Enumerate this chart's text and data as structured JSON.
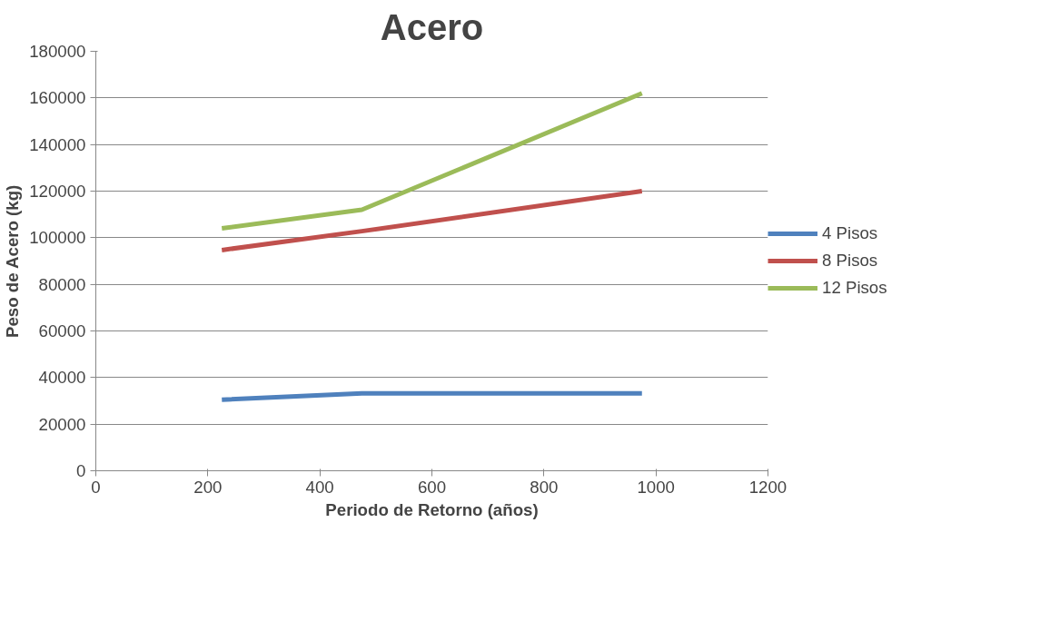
{
  "chart_data": {
    "type": "line",
    "title": "Acero",
    "xlabel": "Periodo de Retorno (años)",
    "ylabel": "Peso de Acero (kg)",
    "x": [
      225,
      475,
      975
    ],
    "series": [
      {
        "name": "4 Pisos",
        "color": "#4f81bd",
        "values": [
          30500,
          33200,
          33200
        ]
      },
      {
        "name": "8 Pisos",
        "color": "#c0504d",
        "values": [
          94700,
          102800,
          120000
        ]
      },
      {
        "name": "12 Pisos",
        "color": "#9bbb59",
        "values": [
          104000,
          112000,
          162000
        ]
      }
    ],
    "xlim": [
      0,
      1200
    ],
    "xticks": [
      0,
      200,
      400,
      600,
      800,
      1000,
      1200
    ],
    "ylim": [
      0,
      180000
    ],
    "yticks": [
      0,
      20000,
      40000,
      60000,
      80000,
      100000,
      120000,
      140000,
      160000,
      180000
    ],
    "grid": "y",
    "legend": "right",
    "marker": "none",
    "line_style": "solid"
  }
}
